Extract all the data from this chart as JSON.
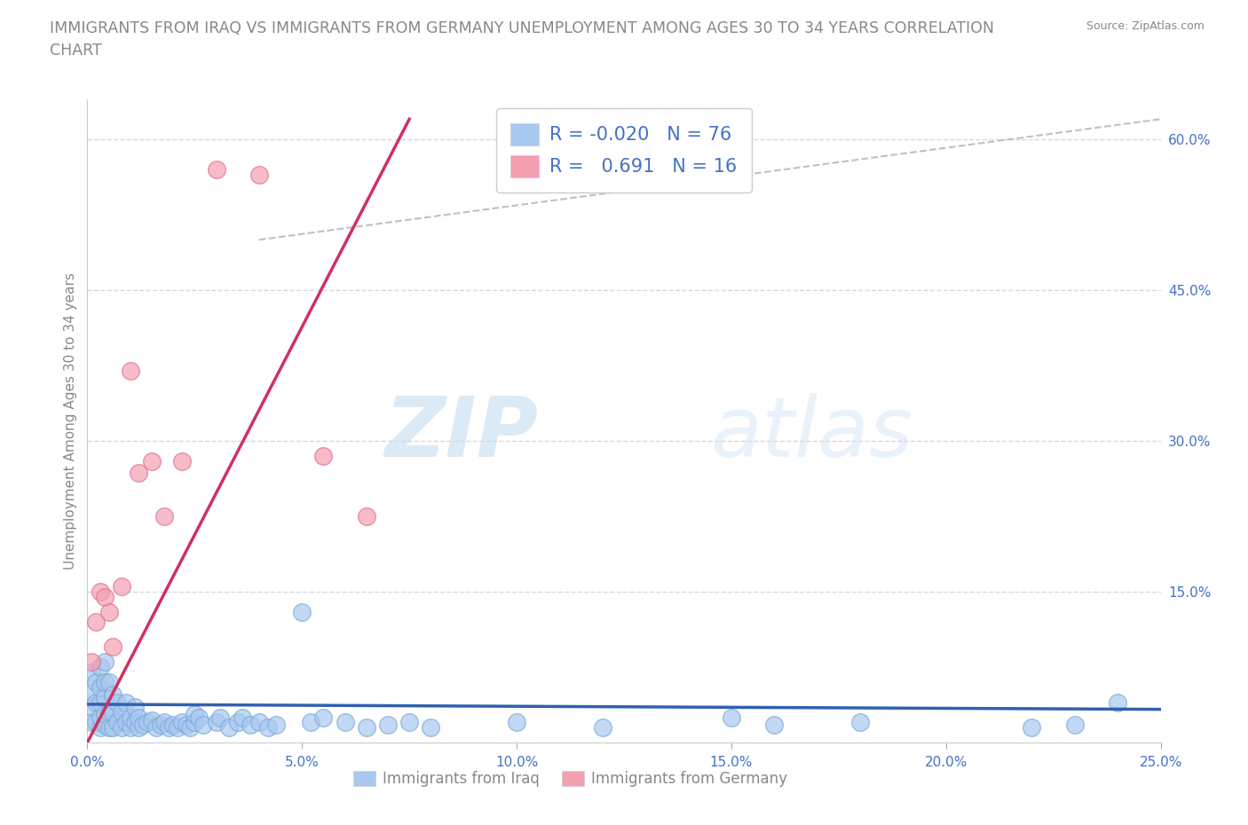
{
  "title": "IMMIGRANTS FROM IRAQ VS IMMIGRANTS FROM GERMANY UNEMPLOYMENT AMONG AGES 30 TO 34 YEARS CORRELATION\nCHART",
  "source": "Source: ZipAtlas.com",
  "ylabel": "Unemployment Among Ages 30 to 34 years",
  "iraq_color": "#a8c8f0",
  "iraq_edge_color": "#7aaad8",
  "germany_color": "#f4a0b0",
  "germany_edge_color": "#e07090",
  "iraq_line_color": "#3060b0",
  "germany_line_color": "#d03060",
  "ols_line_color": "#c0c0c0",
  "legend_iraq_R": "-0.020",
  "legend_iraq_N": "76",
  "legend_germany_R": "0.691",
  "legend_germany_N": "16",
  "watermark_zip": "ZIP",
  "watermark_atlas": "atlas",
  "xlim": [
    0.0,
    0.25
  ],
  "ylim": [
    0.0,
    0.64
  ],
  "xticks": [
    0.0,
    0.05,
    0.1,
    0.15,
    0.2,
    0.25
  ],
  "yticks_left": [],
  "yticks_right": [
    0.15,
    0.3,
    0.45,
    0.6
  ],
  "grid_color": "#d8d8d8",
  "background_color": "#ffffff",
  "title_fontsize": 12.5,
  "label_fontsize": 11,
  "tick_fontsize": 11,
  "iraq_scatter_x": [
    0.001,
    0.001,
    0.001,
    0.001,
    0.002,
    0.002,
    0.002,
    0.003,
    0.003,
    0.003,
    0.003,
    0.003,
    0.004,
    0.004,
    0.004,
    0.004,
    0.004,
    0.005,
    0.005,
    0.005,
    0.006,
    0.006,
    0.006,
    0.007,
    0.007,
    0.008,
    0.008,
    0.009,
    0.009,
    0.01,
    0.01,
    0.011,
    0.011,
    0.012,
    0.012,
    0.013,
    0.014,
    0.015,
    0.016,
    0.017,
    0.018,
    0.019,
    0.02,
    0.021,
    0.022,
    0.023,
    0.024,
    0.025,
    0.025,
    0.026,
    0.027,
    0.03,
    0.031,
    0.033,
    0.035,
    0.036,
    0.038,
    0.04,
    0.042,
    0.044,
    0.05,
    0.052,
    0.055,
    0.06,
    0.065,
    0.07,
    0.075,
    0.08,
    0.1,
    0.12,
    0.15,
    0.16,
    0.18,
    0.22,
    0.23,
    0.24
  ],
  "iraq_scatter_y": [
    0.02,
    0.035,
    0.05,
    0.07,
    0.02,
    0.04,
    0.06,
    0.015,
    0.025,
    0.04,
    0.055,
    0.075,
    0.018,
    0.028,
    0.045,
    0.06,
    0.08,
    0.015,
    0.03,
    0.06,
    0.015,
    0.03,
    0.048,
    0.02,
    0.04,
    0.015,
    0.03,
    0.02,
    0.04,
    0.015,
    0.025,
    0.02,
    0.035,
    0.015,
    0.025,
    0.018,
    0.02,
    0.022,
    0.015,
    0.018,
    0.02,
    0.015,
    0.018,
    0.015,
    0.02,
    0.018,
    0.015,
    0.02,
    0.028,
    0.025,
    0.018,
    0.02,
    0.025,
    0.015,
    0.02,
    0.025,
    0.018,
    0.02,
    0.015,
    0.018,
    0.13,
    0.02,
    0.025,
    0.02,
    0.015,
    0.018,
    0.02,
    0.015,
    0.02,
    0.015,
    0.025,
    0.018,
    0.02,
    0.015,
    0.018,
    0.04
  ],
  "germany_scatter_x": [
    0.001,
    0.002,
    0.003,
    0.004,
    0.005,
    0.006,
    0.008,
    0.01,
    0.012,
    0.015,
    0.018,
    0.022,
    0.03,
    0.04,
    0.055,
    0.065
  ],
  "germany_scatter_y": [
    0.08,
    0.12,
    0.15,
    0.145,
    0.13,
    0.095,
    0.155,
    0.37,
    0.268,
    0.28,
    0.225,
    0.28,
    0.57,
    0.565,
    0.285,
    0.225
  ],
  "iraq_line_x": [
    0.0,
    0.25
  ],
  "iraq_line_y": [
    0.038,
    0.033
  ],
  "germany_line_x": [
    0.0,
    0.075
  ],
  "germany_line_y": [
    0.0,
    0.62
  ],
  "ols_line_x": [
    0.04,
    0.25
  ],
  "ols_line_y": [
    0.5,
    0.62
  ]
}
